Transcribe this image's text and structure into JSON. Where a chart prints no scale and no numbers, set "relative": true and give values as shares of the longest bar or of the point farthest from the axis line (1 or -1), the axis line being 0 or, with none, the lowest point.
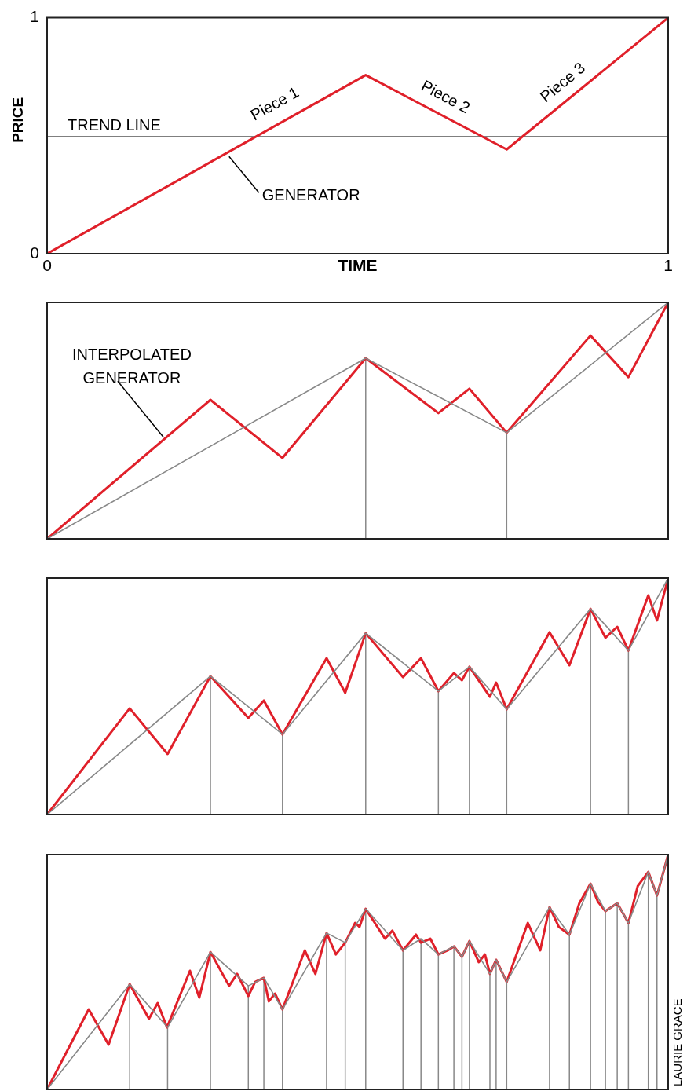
{
  "chart_data": [
    {
      "type": "line",
      "xlabel": "TIME",
      "ylabel": "PRICE",
      "xlim": [
        0,
        1
      ],
      "ylim": [
        0,
        1
      ],
      "xticks": [
        0,
        1
      ],
      "yticks": [
        0,
        1
      ],
      "series": [
        {
          "color": "#e0202a",
          "x": [
            0,
            0.513,
            0.74,
            1
          ],
          "values": [
            0,
            0.757,
            0.442,
            1
          ]
        }
      ],
      "ref_lines": [
        {
          "axis": "y",
          "value": 0.495,
          "label": "TREND LINE",
          "color": "#000000"
        }
      ],
      "annotations": [
        {
          "text": "Piece 1",
          "x": 0.382,
          "y": 0.563
        },
        {
          "text": "Piece 2",
          "x": 0.628,
          "y": 0.597
        },
        {
          "text": "Piece 3",
          "x": 0.847,
          "y": 0.672
        },
        {
          "text": "GENERATOR",
          "x": 0.293,
          "y": 0.425
        }
      ]
    },
    {
      "type": "line",
      "xlim": [
        0,
        1
      ],
      "relative": true,
      "series": [
        {
          "color": "#888888",
          "x": [
            0,
            0.513,
            0.74,
            1
          ],
          "values": [
            0,
            0.764,
            0.449,
            1
          ]
        },
        {
          "color": "#e0202a",
          "x": [
            0,
            0.263,
            0.379,
            0.513,
            0.63,
            0.68,
            0.74,
            0.875,
            0.936,
            1
          ],
          "values": [
            0,
            0.588,
            0.342,
            0.764,
            0.532,
            0.635,
            0.449,
            0.86,
            0.684,
            1
          ]
        }
      ],
      "ref_lines": [
        {
          "axis": "x",
          "value": 0.513,
          "color": "#888888"
        },
        {
          "axis": "x",
          "value": 0.74,
          "color": "#888888"
        }
      ],
      "annotations": [
        "INTERPOLATED GENERATOR"
      ]
    },
    {
      "type": "line",
      "xlim": [
        0,
        1
      ],
      "relative": true,
      "series": [
        {
          "color": "#888888",
          "x": [
            0,
            0.263,
            0.379,
            0.513,
            0.63,
            0.68,
            0.74,
            0.875,
            0.936,
            1
          ],
          "values": [
            0,
            0.585,
            0.339,
            0.767,
            0.522,
            0.625,
            0.445,
            0.87,
            0.694,
            1
          ]
        },
        {
          "color": "#e0202a",
          "x": [
            0,
            0.133,
            0.194,
            0.263,
            0.324,
            0.349,
            0.379,
            0.45,
            0.48,
            0.513,
            0.573,
            0.602,
            0.63,
            0.655,
            0.668,
            0.68,
            0.713,
            0.723,
            0.74,
            0.809,
            0.841,
            0.875,
            0.899,
            0.918,
            0.936,
            0.968,
            0.982,
            1
          ],
          "values": [
            0,
            0.449,
            0.256,
            0.585,
            0.409,
            0.482,
            0.339,
            0.661,
            0.515,
            0.767,
            0.581,
            0.661,
            0.522,
            0.598,
            0.568,
            0.625,
            0.498,
            0.558,
            0.445,
            0.771,
            0.631,
            0.87,
            0.748,
            0.794,
            0.694,
            0.927,
            0.821,
            1
          ]
        }
      ],
      "ref_lines": [
        {
          "axis": "x",
          "value": 0.263,
          "color": "#888888"
        },
        {
          "axis": "x",
          "value": 0.379,
          "color": "#888888"
        },
        {
          "axis": "x",
          "value": 0.513,
          "color": "#888888"
        },
        {
          "axis": "x",
          "value": 0.63,
          "color": "#888888"
        },
        {
          "axis": "x",
          "value": 0.68,
          "color": "#888888"
        },
        {
          "axis": "x",
          "value": 0.74,
          "color": "#888888"
        },
        {
          "axis": "x",
          "value": 0.875,
          "color": "#888888"
        },
        {
          "axis": "x",
          "value": 0.936,
          "color": "#888888"
        }
      ]
    },
    {
      "type": "line",
      "xlim": [
        0,
        1
      ],
      "relative": true,
      "series": [
        {
          "color": "#888888",
          "x": [
            0,
            0.133,
            0.194,
            0.263,
            0.324,
            0.349,
            0.379,
            0.45,
            0.48,
            0.513,
            0.573,
            0.602,
            0.63,
            0.655,
            0.668,
            0.68,
            0.713,
            0.723,
            0.74,
            0.809,
            0.841,
            0.875,
            0.899,
            0.918,
            0.936,
            0.968,
            0.982,
            1
          ],
          "values": [
            0,
            0.448,
            0.264,
            0.585,
            0.441,
            0.475,
            0.341,
            0.666,
            0.625,
            0.769,
            0.592,
            0.642,
            0.575,
            0.609,
            0.565,
            0.632,
            0.492,
            0.552,
            0.458,
            0.776,
            0.659,
            0.876,
            0.759,
            0.793,
            0.709,
            0.926,
            0.826,
            1
          ]
        },
        {
          "color": "#e0202a",
          "x": [
            0,
            0.067,
            0.099,
            0.133,
            0.164,
            0.178,
            0.193,
            0.23,
            0.245,
            0.263,
            0.293,
            0.306,
            0.324,
            0.335,
            0.349,
            0.357,
            0.367,
            0.379,
            0.415,
            0.432,
            0.45,
            0.465,
            0.48,
            0.496,
            0.503,
            0.513,
            0.544,
            0.556,
            0.573,
            0.594,
            0.602,
            0.617,
            0.63,
            0.645,
            0.655,
            0.668,
            0.68,
            0.695,
            0.705,
            0.713,
            0.723,
            0.74,
            0.774,
            0.794,
            0.809,
            0.824,
            0.841,
            0.857,
            0.875,
            0.887,
            0.899,
            0.918,
            0.936,
            0.951,
            0.968,
            0.982,
            1
          ],
          "values": [
            0,
            0.341,
            0.191,
            0.448,
            0.301,
            0.368,
            0.264,
            0.505,
            0.391,
            0.585,
            0.441,
            0.492,
            0.398,
            0.458,
            0.475,
            0.375,
            0.408,
            0.341,
            0.592,
            0.492,
            0.666,
            0.575,
            0.625,
            0.709,
            0.692,
            0.769,
            0.642,
            0.676,
            0.592,
            0.659,
            0.625,
            0.642,
            0.575,
            0.592,
            0.609,
            0.565,
            0.632,
            0.542,
            0.575,
            0.492,
            0.552,
            0.458,
            0.709,
            0.592,
            0.776,
            0.692,
            0.659,
            0.793,
            0.876,
            0.799,
            0.759,
            0.793,
            0.709,
            0.866,
            0.926,
            0.826,
            1
          ]
        }
      ],
      "ref_lines": [
        {
          "axis": "x",
          "value": 0.133,
          "color": "#888888"
        },
        {
          "axis": "x",
          "value": 0.194,
          "color": "#888888"
        },
        {
          "axis": "x",
          "value": 0.263,
          "color": "#888888"
        },
        {
          "axis": "x",
          "value": 0.324,
          "color": "#888888"
        },
        {
          "axis": "x",
          "value": 0.349,
          "color": "#888888"
        },
        {
          "axis": "x",
          "value": 0.379,
          "color": "#888888"
        },
        {
          "axis": "x",
          "value": 0.45,
          "color": "#888888"
        },
        {
          "axis": "x",
          "value": 0.48,
          "color": "#888888"
        },
        {
          "axis": "x",
          "value": 0.513,
          "color": "#888888"
        },
        {
          "axis": "x",
          "value": 0.573,
          "color": "#888888"
        },
        {
          "axis": "x",
          "value": 0.602,
          "color": "#888888"
        },
        {
          "axis": "x",
          "value": 0.63,
          "color": "#888888"
        },
        {
          "axis": "x",
          "value": 0.655,
          "color": "#888888"
        },
        {
          "axis": "x",
          "value": 0.668,
          "color": "#888888"
        },
        {
          "axis": "x",
          "value": 0.68,
          "color": "#888888"
        },
        {
          "axis": "x",
          "value": 0.713,
          "color": "#888888"
        },
        {
          "axis": "x",
          "value": 0.723,
          "color": "#888888"
        },
        {
          "axis": "x",
          "value": 0.74,
          "color": "#888888"
        },
        {
          "axis": "x",
          "value": 0.809,
          "color": "#888888"
        },
        {
          "axis": "x",
          "value": 0.841,
          "color": "#888888"
        },
        {
          "axis": "x",
          "value": 0.875,
          "color": "#888888"
        },
        {
          "axis": "x",
          "value": 0.899,
          "color": "#888888"
        },
        {
          "axis": "x",
          "value": 0.918,
          "color": "#888888"
        },
        {
          "axis": "x",
          "value": 0.936,
          "color": "#888888"
        },
        {
          "axis": "x",
          "value": 0.968,
          "color": "#888888"
        },
        {
          "axis": "x",
          "value": 0.982,
          "color": "#888888"
        }
      ],
      "annotations": [
        "LAURIE GRACE"
      ]
    }
  ]
}
